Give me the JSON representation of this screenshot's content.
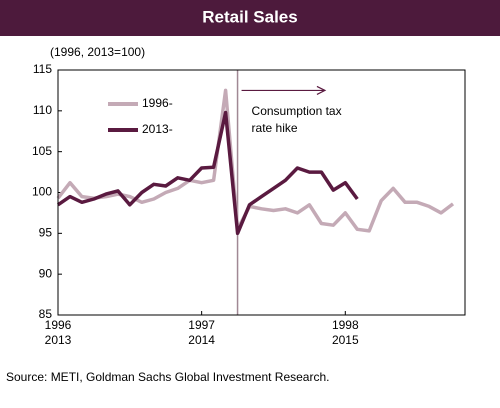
{
  "chart_data": {
    "type": "line",
    "title": "Retail Sales",
    "subtitle": "(1996, 2013=100)",
    "source": "Source: METI, Goldman Sachs Global Investment Research.",
    "annotation": {
      "lines": [
        "Consumption tax",
        "rate hike"
      ],
      "x": 15,
      "arrow_x": [
        15,
        22.3
      ],
      "arrow_y": 112.5
    },
    "xlim": [
      0,
      34
    ],
    "ylim": [
      85,
      115
    ],
    "yticks": [
      85,
      90,
      95,
      100,
      105,
      110,
      115
    ],
    "xticks": [
      {
        "value": 0,
        "label": "1996"
      },
      {
        "value": 12,
        "label": "1997"
      },
      {
        "value": 24,
        "label": "1998"
      }
    ],
    "xticks_secondary": [
      {
        "value": 0,
        "label": "2013"
      },
      {
        "value": 12,
        "label": "2014"
      },
      {
        "value": 24,
        "label": "2015"
      }
    ],
    "series": [
      {
        "name": "1996-",
        "color": "#c4aab6",
        "x": [
          0,
          1,
          2,
          3,
          4,
          5,
          6,
          7,
          8,
          9,
          10,
          11,
          12,
          13,
          14,
          15,
          16,
          17,
          18,
          19,
          20,
          21,
          22,
          23,
          24,
          25,
          26,
          27,
          28,
          29,
          30,
          31,
          32,
          33
        ],
        "values": [
          99.3,
          101.2,
          99.5,
          99.3,
          99.5,
          99.8,
          99.5,
          98.8,
          99.2,
          100,
          100.5,
          101.5,
          101.2,
          101.5,
          112.5,
          95.5,
          98.3,
          98,
          97.8,
          98,
          97.5,
          98.5,
          96.2,
          96,
          97.5,
          95.5,
          95.3,
          99,
          100.5,
          98.8,
          98.8,
          98.3,
          97.5,
          98.6
        ]
      },
      {
        "name": "2013-",
        "color": "#5a1a40",
        "x": [
          0,
          1,
          2,
          3,
          4,
          5,
          6,
          7,
          8,
          9,
          10,
          11,
          12,
          13,
          14,
          15,
          16,
          17,
          18,
          19,
          20,
          21,
          22,
          23,
          24,
          25
        ],
        "values": [
          98.5,
          99.5,
          98.8,
          99.2,
          99.8,
          100.2,
          98.5,
          100,
          101,
          100.8,
          101.8,
          101.5,
          103,
          103.1,
          109.8,
          95,
          98.5,
          99.5,
          100.5,
          101.5,
          103,
          102.5,
          102.5,
          100.3,
          101.2,
          99.2
        ]
      }
    ]
  }
}
